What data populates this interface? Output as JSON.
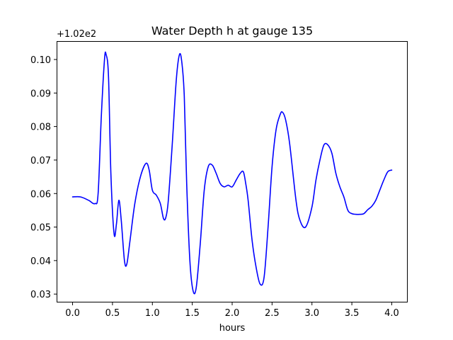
{
  "chart_data": {
    "type": "line",
    "title": "Water Depth h at gauge 135",
    "xlabel": "hours",
    "ylabel": "",
    "offset_text": "+1.02e2",
    "xlim": [
      -0.2,
      4.2
    ],
    "ylim": [
      0.0275,
      0.1055
    ],
    "xticks": [
      0.0,
      0.5,
      1.0,
      1.5,
      2.0,
      2.5,
      3.0,
      3.5,
      4.0
    ],
    "xtick_labels": [
      "0.0",
      "0.5",
      "1.0",
      "1.5",
      "2.0",
      "2.5",
      "3.0",
      "3.5",
      "4.0"
    ],
    "yticks": [
      0.03,
      0.04,
      0.05,
      0.06,
      0.07,
      0.08,
      0.09,
      0.1
    ],
    "ytick_labels": [
      "0.03",
      "0.04",
      "0.05",
      "0.06",
      "0.07",
      "0.08",
      "0.09",
      "0.10"
    ],
    "grid": false,
    "series": [
      {
        "color": "#0000ff",
        "x": [
          0.0,
          0.1,
          0.2,
          0.28,
          0.32,
          0.36,
          0.4,
          0.42,
          0.45,
          0.48,
          0.52,
          0.55,
          0.58,
          0.61,
          0.65,
          0.68,
          0.72,
          0.78,
          0.85,
          0.92,
          0.96,
          1.0,
          1.05,
          1.1,
          1.14,
          1.17,
          1.2,
          1.25,
          1.3,
          1.34,
          1.37,
          1.4,
          1.43,
          1.47,
          1.51,
          1.55,
          1.6,
          1.65,
          1.7,
          1.75,
          1.8,
          1.85,
          1.9,
          1.95,
          2.0,
          2.05,
          2.1,
          2.14,
          2.17,
          2.2,
          2.25,
          2.3,
          2.35,
          2.4,
          2.45,
          2.5,
          2.55,
          2.6,
          2.63,
          2.67,
          2.72,
          2.8,
          2.85,
          2.92,
          3.0,
          3.05,
          3.1,
          3.15,
          3.2,
          3.25,
          3.3,
          3.35,
          3.4,
          3.45,
          3.5,
          3.55,
          3.6,
          3.65,
          3.7,
          3.75,
          3.8,
          3.85,
          3.9,
          3.95,
          4.0
        ],
        "y": [
          0.059,
          0.059,
          0.058,
          0.057,
          0.06,
          0.083,
          0.1,
          0.1015,
          0.095,
          0.066,
          0.048,
          0.051,
          0.058,
          0.052,
          0.04,
          0.039,
          0.046,
          0.057,
          0.065,
          0.069,
          0.067,
          0.061,
          0.0595,
          0.057,
          0.0525,
          0.053,
          0.058,
          0.075,
          0.094,
          0.1015,
          0.099,
          0.089,
          0.063,
          0.04,
          0.031,
          0.032,
          0.045,
          0.061,
          0.068,
          0.0685,
          0.066,
          0.063,
          0.062,
          0.0625,
          0.062,
          0.064,
          0.066,
          0.0665,
          0.063,
          0.058,
          0.046,
          0.038,
          0.033,
          0.035,
          0.05,
          0.068,
          0.079,
          0.0835,
          0.0843,
          0.082,
          0.075,
          0.058,
          0.052,
          0.05,
          0.056,
          0.064,
          0.07,
          0.0745,
          0.0745,
          0.072,
          0.066,
          0.062,
          0.059,
          0.055,
          0.054,
          0.0538,
          0.0538,
          0.054,
          0.0552,
          0.0562,
          0.058,
          0.061,
          0.064,
          0.0665,
          0.067
        ]
      }
    ]
  }
}
